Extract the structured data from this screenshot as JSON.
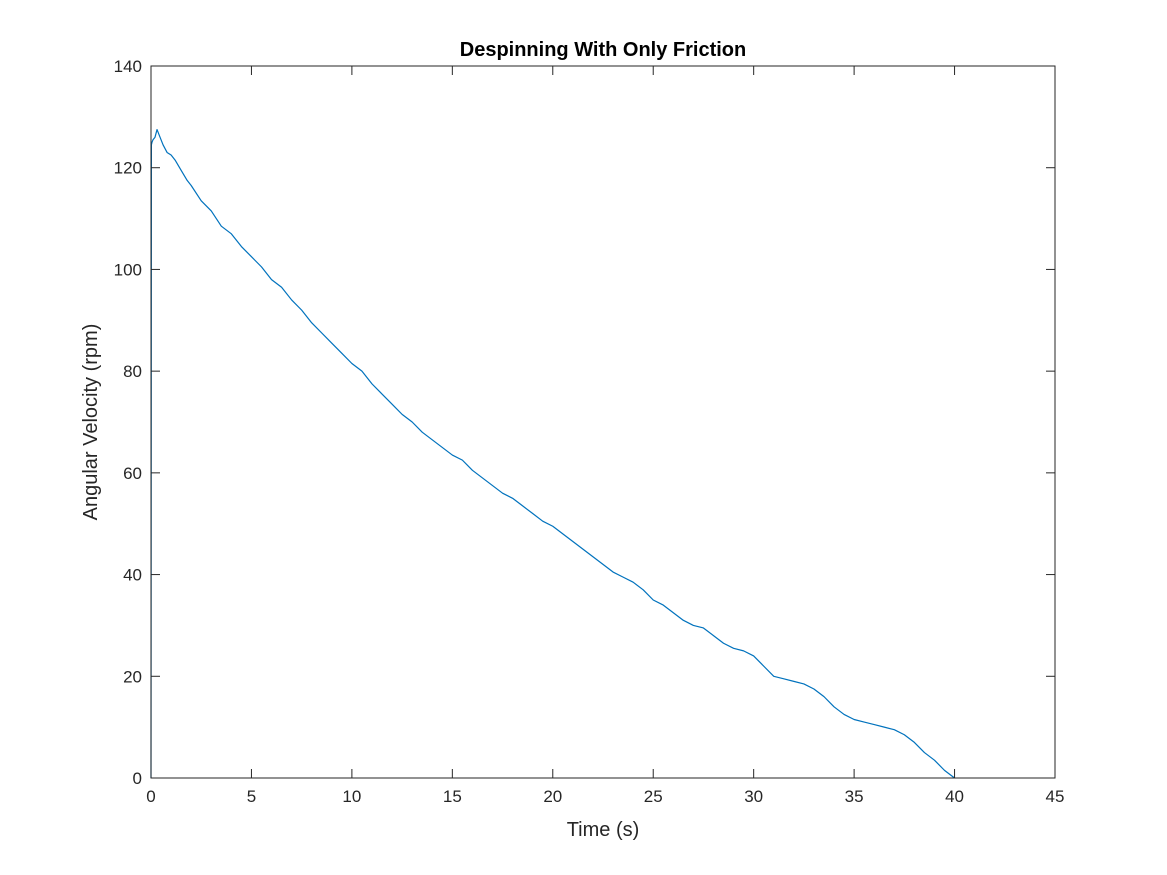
{
  "chart_data": {
    "type": "line",
    "title": "Despinning With Only Friction",
    "xlabel": "Time (s)",
    "ylabel": "Angular Velocity (rpm)",
    "xlim": [
      0,
      45
    ],
    "ylim": [
      0,
      140
    ],
    "xticks": [
      0,
      5,
      10,
      15,
      20,
      25,
      30,
      35,
      40,
      45
    ],
    "yticks": [
      0,
      20,
      40,
      60,
      80,
      100,
      120,
      140
    ],
    "xtick_labels": [
      "0",
      "5",
      "10",
      "15",
      "20",
      "25",
      "30",
      "35",
      "40",
      "45"
    ],
    "ytick_labels": [
      "0",
      "20",
      "40",
      "60",
      "80",
      "100",
      "120",
      "140"
    ],
    "grid": false,
    "box": true,
    "series": [
      {
        "color": "#0072BD",
        "x": [
          0,
          0.02,
          0.05,
          0.1,
          0.2,
          0.3,
          0.4,
          0.6,
          0.8,
          1.0,
          1.2,
          1.5,
          1.8,
          2.0,
          2.5,
          3.0,
          3.5,
          4.0,
          4.5,
          5.0,
          5.5,
          6.0,
          6.5,
          7.0,
          7.5,
          8.0,
          8.5,
          9.0,
          9.5,
          10.0,
          10.5,
          11.0,
          11.5,
          12.0,
          12.5,
          13.0,
          13.5,
          14.0,
          14.5,
          15.0,
          15.5,
          16.0,
          16.5,
          17.0,
          17.5,
          18.0,
          18.5,
          19.0,
          19.5,
          20.0,
          20.5,
          21.0,
          21.5,
          22.0,
          22.5,
          23.0,
          23.5,
          24.0,
          24.5,
          25.0,
          25.5,
          26.0,
          26.5,
          27.0,
          27.5,
          28.0,
          28.5,
          29.0,
          29.5,
          30.0,
          30.5,
          31.0,
          31.5,
          32.0,
          32.5,
          33.0,
          33.5,
          34.0,
          34.5,
          35.0,
          35.5,
          36.0,
          36.5,
          37.0,
          37.5,
          38.0,
          38.5,
          39.0,
          39.5,
          40.0
        ],
        "y": [
          0,
          124.5,
          125.0,
          125.5,
          126.0,
          127.5,
          126.5,
          124.5,
          123.0,
          122.5,
          121.5,
          119.5,
          117.5,
          116.5,
          113.5,
          111.5,
          108.5,
          107.0,
          104.5,
          102.5,
          100.5,
          98.0,
          96.5,
          94.0,
          92.0,
          89.5,
          87.5,
          85.5,
          83.5,
          81.5,
          80.0,
          77.5,
          75.5,
          73.5,
          71.5,
          70.0,
          68.0,
          66.5,
          65.0,
          63.5,
          62.5,
          60.5,
          59.0,
          57.5,
          56.0,
          55.0,
          53.5,
          52.0,
          50.5,
          49.5,
          48.0,
          46.5,
          45.0,
          43.5,
          42.0,
          40.5,
          39.5,
          38.5,
          37.0,
          35.0,
          34.0,
          32.5,
          31.0,
          30.0,
          29.5,
          28.0,
          26.5,
          25.5,
          25.0,
          24.0,
          22.0,
          20.0,
          19.5,
          19.0,
          18.5,
          17.5,
          16.0,
          14.0,
          12.5,
          11.5,
          11.0,
          10.5,
          10.0,
          9.5,
          8.5,
          7.0,
          5.0,
          3.5,
          1.5,
          0.0
        ]
      }
    ]
  }
}
